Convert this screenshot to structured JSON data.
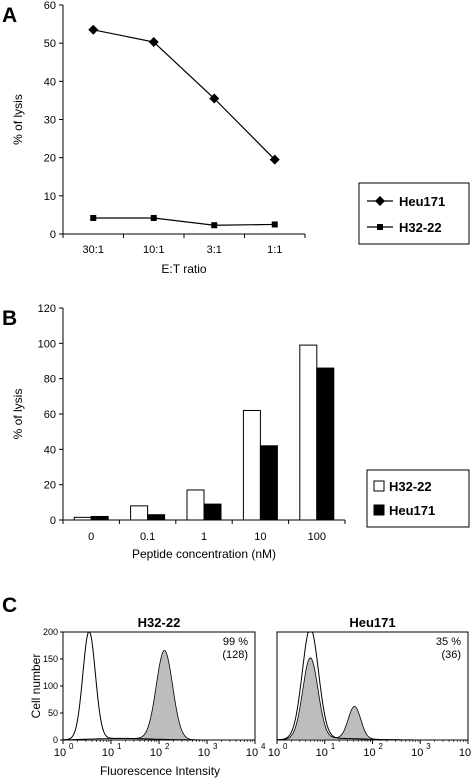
{
  "chart_data": [
    {
      "panel": "A",
      "type": "line",
      "categories": [
        "30:1",
        "10:1",
        "3:1",
        "1:1"
      ],
      "series": [
        {
          "name": "Heu171",
          "marker": "diamond",
          "values": [
            53.5,
            50.3,
            35.5,
            19.5
          ]
        },
        {
          "name": "H32-22",
          "marker": "square",
          "values": [
            4.2,
            4.2,
            2.3,
            2.5
          ]
        }
      ],
      "xlabel": "E:T ratio",
      "ylabel": "% of lysis",
      "ylim": [
        0,
        60
      ],
      "yticks": [
        "0",
        "10",
        "20",
        "30",
        "40",
        "50",
        "60"
      ],
      "grid": false,
      "legend": "bottom-right"
    },
    {
      "panel": "B",
      "type": "bar",
      "categories": [
        "0",
        "0.1",
        "1",
        "10",
        "100"
      ],
      "series": [
        {
          "name": "H32-22",
          "fill": "#ffffff",
          "values": [
            1.5,
            8,
            17,
            62,
            99
          ]
        },
        {
          "name": "Heu171",
          "fill": "#000000",
          "values": [
            2,
            3,
            9,
            42,
            86
          ]
        }
      ],
      "xlabel": "Peptide concentration (nM)",
      "ylabel": "% of lysis",
      "ylim": [
        0,
        120
      ],
      "yticks": [
        "0",
        "20",
        "40",
        "60",
        "80",
        "100",
        "120"
      ],
      "grid": false,
      "legend": "bottom-right"
    },
    {
      "panel": "C",
      "type": "histogram",
      "xscale": "log",
      "xlim": [
        1,
        10000
      ],
      "ylim": [
        0,
        200
      ],
      "yticks": [
        "0",
        "50",
        "100",
        "150",
        "200"
      ],
      "xticks": [
        "0",
        "1",
        "2",
        "3",
        "4"
      ],
      "tick_base": "10",
      "ylabel": "Cell number",
      "xlabel": "Fluorescence Intensity",
      "plots": [
        {
          "title": "H32-22",
          "annotation_pct": "99 %",
          "annotation_mfi": "(128)",
          "control_peaks": [
            {
              "center": 3.5,
              "height": 200,
              "width": 0.13
            }
          ],
          "stained_peaks": [
            {
              "center": 130,
              "height": 165,
              "width": 0.17
            }
          ]
        },
        {
          "title": "Heu171",
          "annotation_pct": "35 %",
          "annotation_mfi": "(36)",
          "control_peaks": [
            {
              "center": 5,
              "height": 205,
              "width": 0.17
            }
          ],
          "stained_peaks": [
            {
              "center": 5,
              "height": 150,
              "width": 0.16
            },
            {
              "center": 42,
              "height": 60,
              "width": 0.13
            }
          ]
        }
      ]
    }
  ],
  "labels": {
    "panel_a": "A",
    "panel_b": "B",
    "panel_c": "C"
  },
  "colors": {
    "axis": "#000000",
    "line": "#000000",
    "hist_fill": "#bdbdbd",
    "background": "#ffffff"
  }
}
